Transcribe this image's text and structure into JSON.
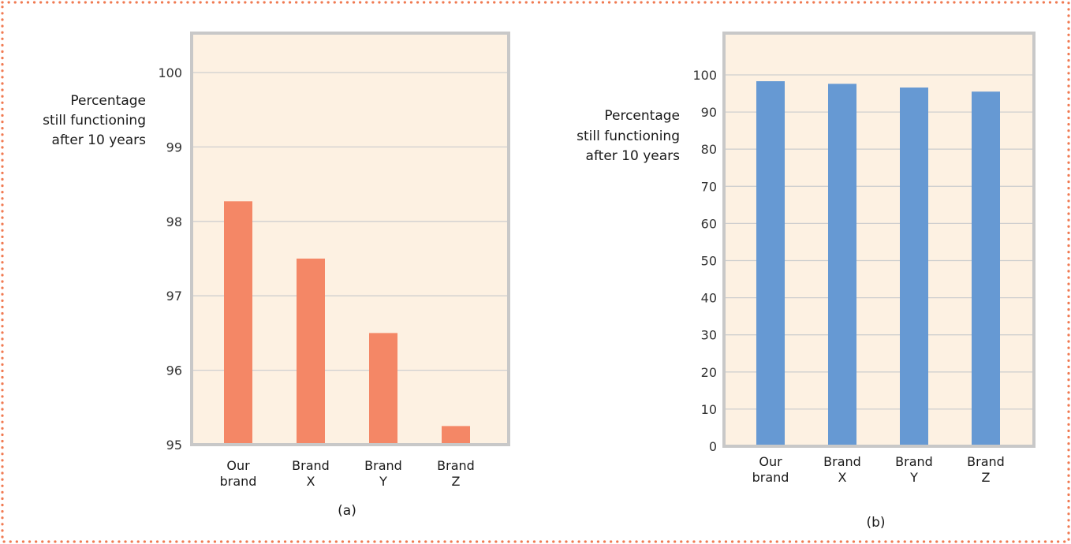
{
  "frame": {
    "border_color": "#f07a52"
  },
  "chart_data": [
    {
      "type": "bar",
      "panel_label": "(a)",
      "ylabel_lines": [
        "Percentage",
        "still functioning",
        "after 10 years"
      ],
      "categories": [
        [
          "Our",
          "brand"
        ],
        [
          "Brand",
          "X"
        ],
        [
          "Brand",
          "Y"
        ],
        [
          "Brand",
          "Z"
        ]
      ],
      "values": [
        98.27,
        97.5,
        96.5,
        95.25
      ],
      "ylim": [
        95,
        100.5
      ],
      "yticks": [
        95,
        96,
        97,
        98,
        99,
        100
      ],
      "grid": true,
      "bar_color": "#f48766",
      "plot_bg": "#fdf1e2",
      "frame_color": "#c8c8c8",
      "grid_color": "#cfcfcf"
    },
    {
      "type": "bar",
      "panel_label": "(b)",
      "ylabel_lines": [
        "Percentage",
        "still functioning",
        "after 10 years"
      ],
      "categories": [
        [
          "Our",
          "brand"
        ],
        [
          "Brand",
          "X"
        ],
        [
          "Brand",
          "Y"
        ],
        [
          "Brand",
          "Z"
        ]
      ],
      "values": [
        98.3,
        97.6,
        96.6,
        95.5
      ],
      "ylim": [
        0,
        105
      ],
      "yticks": [
        0,
        10,
        20,
        30,
        40,
        50,
        60,
        70,
        80,
        90,
        100
      ],
      "grid": true,
      "bar_color": "#6699d3",
      "plot_bg": "#fdf1e2",
      "frame_color": "#c8c8c8",
      "grid_color": "#cfcfcf"
    }
  ]
}
